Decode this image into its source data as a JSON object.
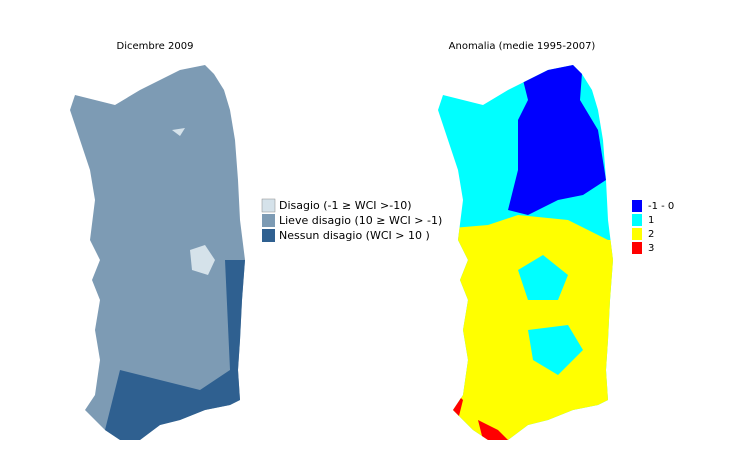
{
  "maps": [
    {
      "title": "Dicembre 2009",
      "legend": [
        {
          "label": "Disagio (-1 ≥ WCI >-10)",
          "color": "#d5e2ea"
        },
        {
          "label": "Lieve disagio (10 ≥ WCI > -1)",
          "color": "#7d9bb4"
        },
        {
          "label": "Nessun disagio (WCI > 10 )",
          "color": "#2f6090"
        }
      ]
    },
    {
      "title": "Anomalia (medie 1995-2007)",
      "legend": [
        {
          "label": "-1 - 0",
          "color": "#0000ff"
        },
        {
          "label": "1",
          "color": "#00ffff"
        },
        {
          "label": "2",
          "color": "#ffff00"
        },
        {
          "label": "3",
          "color": "#ff0000"
        }
      ]
    }
  ]
}
